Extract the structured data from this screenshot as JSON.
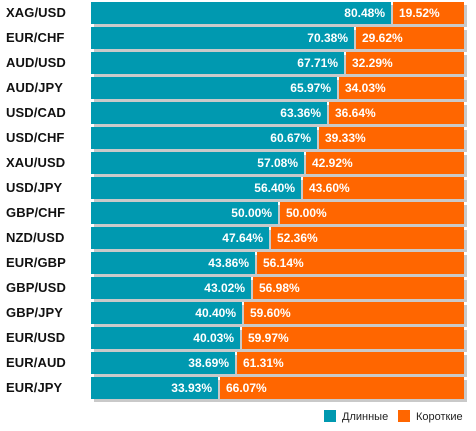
{
  "chart_data": {
    "type": "bar",
    "orientation": "horizontal",
    "stacked": true,
    "percent_stacked": true,
    "categories": [
      "XAG/USD",
      "EUR/CHF",
      "AUD/USD",
      "AUD/JPY",
      "USD/CAD",
      "USD/CHF",
      "XAU/USD",
      "USD/JPY",
      "GBP/CHF",
      "NZD/USD",
      "EUR/GBP",
      "GBP/USD",
      "GBP/JPY",
      "EUR/USD",
      "EUR/AUD",
      "EUR/JPY"
    ],
    "series": [
      {
        "name": "Длинные",
        "color": "#0099b0",
        "values": [
          80.48,
          70.38,
          67.71,
          65.97,
          63.36,
          60.67,
          57.08,
          56.4,
          50.0,
          47.64,
          43.86,
          43.02,
          40.4,
          40.03,
          38.69,
          33.93
        ],
        "labels": [
          "80.48%",
          "70.38%",
          "67.71%",
          "65.97%",
          "63.36%",
          "60.67%",
          "57.08%",
          "56.40%",
          "50.00%",
          "47.64%",
          "43.86%",
          "43.02%",
          "40.40%",
          "40.03%",
          "38.69%",
          "33.93%"
        ]
      },
      {
        "name": "Короткие",
        "color": "#ff6600",
        "values": [
          19.52,
          29.62,
          32.29,
          34.03,
          36.64,
          39.33,
          42.92,
          43.6,
          50.0,
          52.36,
          56.14,
          56.98,
          59.6,
          59.97,
          61.31,
          66.07
        ],
        "labels": [
          "19.52%",
          "29.62%",
          "32.29%",
          "34.03%",
          "36.64%",
          "39.33%",
          "42.92%",
          "43.60%",
          "50.00%",
          "52.36%",
          "56.14%",
          "56.98%",
          "59.60%",
          "59.97%",
          "61.31%",
          "66.07%"
        ]
      }
    ],
    "xlim": [
      0,
      100
    ],
    "grid": false,
    "legend_position": "bottom-right"
  }
}
